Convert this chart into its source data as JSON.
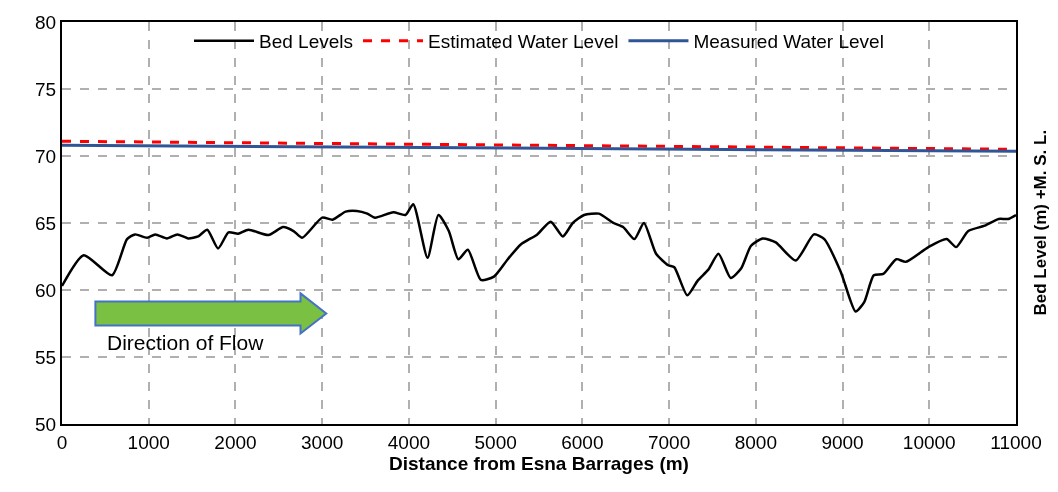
{
  "chart_data": {
    "type": "line",
    "xlabel": "Distance from Esna Barrages (m)",
    "ylabel": "Bed Level (m) +M. S. L.",
    "annotations": [
      "Direction of Flow"
    ],
    "xlim": [
      0,
      11000
    ],
    "xticks": [
      0,
      1000,
      2000,
      3000,
      4000,
      5000,
      6000,
      7000,
      8000,
      9000,
      10000,
      11000
    ],
    "ylim": [
      50,
      80
    ],
    "yticks": [
      50,
      55,
      60,
      65,
      70,
      75,
      80
    ],
    "grid": true,
    "legend": "top",
    "marker": "none",
    "series": [
      {
        "name": "Bed Levels",
        "color": "#000000",
        "line_style": "solid",
        "x": [
          0,
          250,
          577,
          750,
          843,
          980,
          1075,
          1210,
          1330,
          1455,
          1570,
          1675,
          1800,
          1920,
          2030,
          2150,
          2380,
          2550,
          2670,
          2770,
          3000,
          3120,
          3270,
          3400,
          3520,
          3610,
          3820,
          3960,
          4050,
          4215,
          4340,
          4460,
          4570,
          4680,
          4830,
          4980,
          5140,
          5290,
          5480,
          5635,
          5775,
          5890,
          6020,
          6190,
          6360,
          6470,
          6600,
          6710,
          6850,
          6990,
          7060,
          7210,
          7330,
          7450,
          7570,
          7710,
          7830,
          7945,
          8080,
          8230,
          8460,
          8670,
          8790,
          8980,
          9150,
          9250,
          9360,
          9470,
          9620,
          9730,
          9990,
          10200,
          10310,
          10450,
          10640,
          10800,
          10910,
          11000
        ],
        "values": [
          60.3,
          62.6,
          61.1,
          63.8,
          64.15,
          63.9,
          64.15,
          63.85,
          64.15,
          63.85,
          64.0,
          64.5,
          63.1,
          64.3,
          64.2,
          64.5,
          64.1,
          64.7,
          64.4,
          63.9,
          65.4,
          65.25,
          65.85,
          65.9,
          65.7,
          65.4,
          65.8,
          65.6,
          66.4,
          62.4,
          65.6,
          64.4,
          62.3,
          63.0,
          60.75,
          61.0,
          62.3,
          63.4,
          64.15,
          65.1,
          64.0,
          65.0,
          65.6,
          65.7,
          65.0,
          64.7,
          63.8,
          65.0,
          62.7,
          61.85,
          61.7,
          59.6,
          60.7,
          61.5,
          62.7,
          60.9,
          61.6,
          63.3,
          63.85,
          63.55,
          62.2,
          64.15,
          63.8,
          61.35,
          58.4,
          59.1,
          61.1,
          61.2,
          62.3,
          62.1,
          63.2,
          63.8,
          63.2,
          64.4,
          64.8,
          65.3,
          65.3,
          65.6
        ]
      },
      {
        "name": "Estimated Water Level",
        "color": "#ff0000",
        "line_style": "dashed",
        "x": [
          0,
          11000
        ],
        "values": [
          71.1,
          70.5
        ]
      },
      {
        "name": "Measured Water Level",
        "color": "#2f5597",
        "line_style": "solid",
        "x": [
          0,
          11000
        ],
        "values": [
          70.8,
          70.35
        ]
      }
    ]
  }
}
